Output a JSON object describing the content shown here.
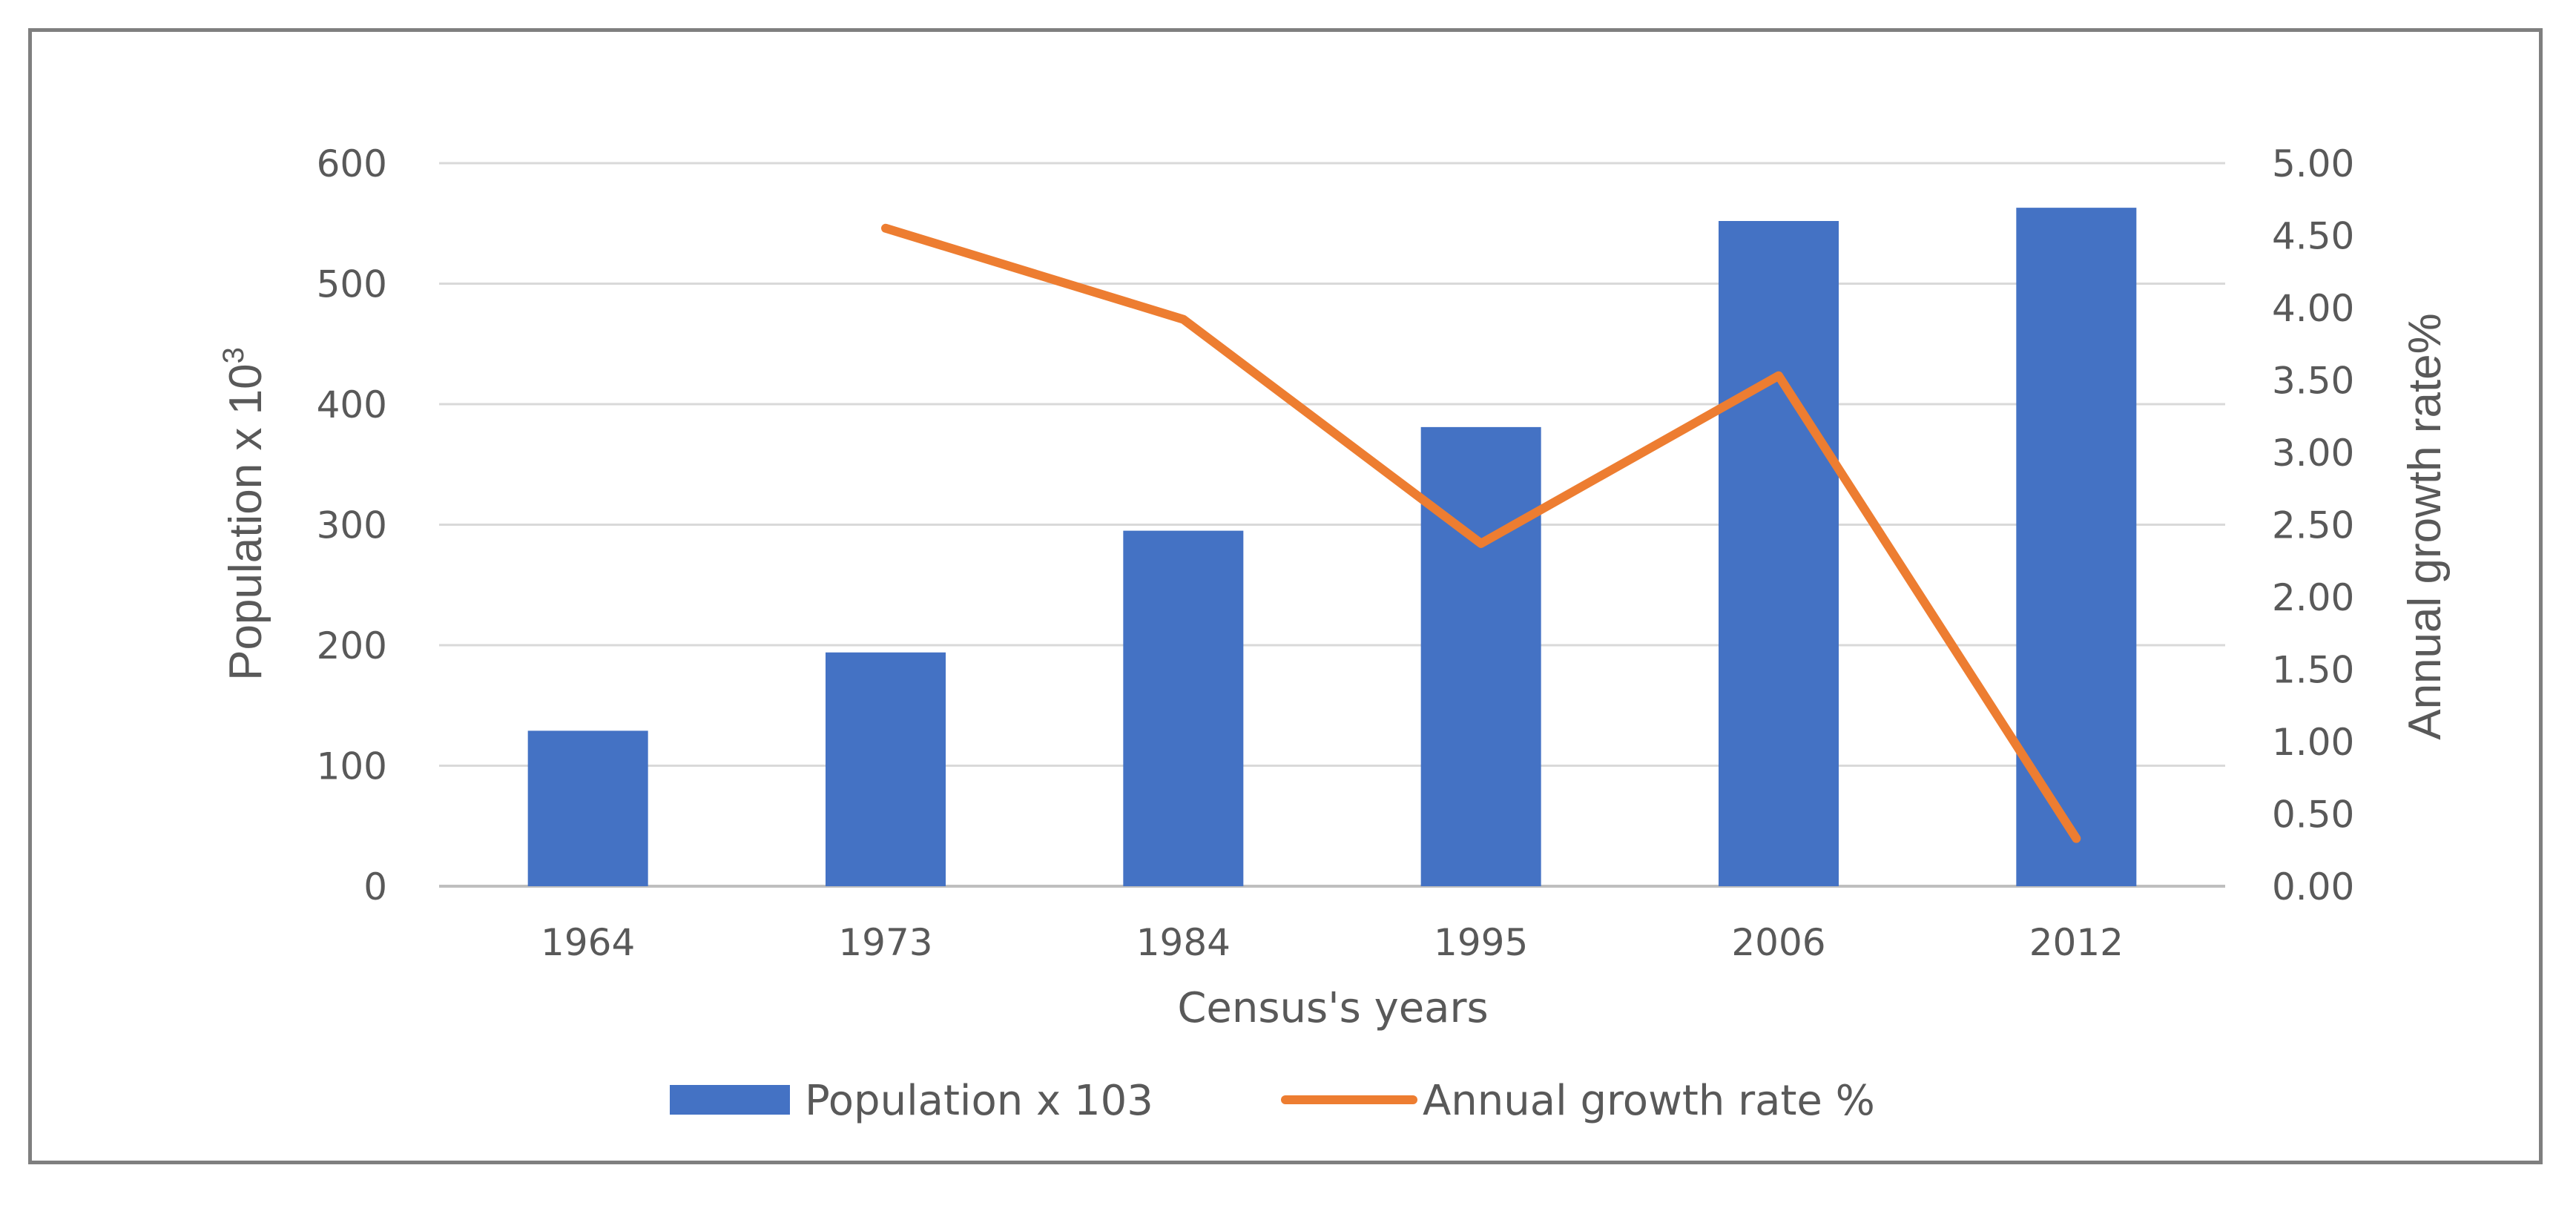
{
  "chart_data": {
    "type": "bar+line",
    "title": "",
    "categories": [
      "1964",
      "1973",
      "1984",
      "1995",
      "2006",
      "2012"
    ],
    "series": [
      {
        "name": "Population x 103",
        "type": "bar",
        "axis": "left",
        "color": "#4472C4",
        "values": [
          129,
          194,
          295,
          381,
          552,
          563
        ]
      },
      {
        "name": "Annual growth rate %",
        "type": "line",
        "axis": "right",
        "color": "#ED7D31",
        "values": [
          null,
          4.55,
          3.92,
          2.37,
          3.53,
          0.33
        ]
      }
    ],
    "xlabel": "Census's years",
    "ylabel": "Population x 10",
    "ylabel_superscript": "3",
    "y2label": "Annual growth rate%",
    "ylim": [
      0,
      600
    ],
    "y_ticks": [
      "0",
      "100",
      "200",
      "300",
      "400",
      "500",
      "600"
    ],
    "y2lim": [
      0,
      5
    ],
    "y2_ticks": [
      "0.00",
      "0.50",
      "1.00",
      "1.50",
      "2.00",
      "2.50",
      "3.00",
      "3.50",
      "4.00",
      "4.50",
      "5.00"
    ],
    "grid": true,
    "legend_position": "bottom"
  }
}
